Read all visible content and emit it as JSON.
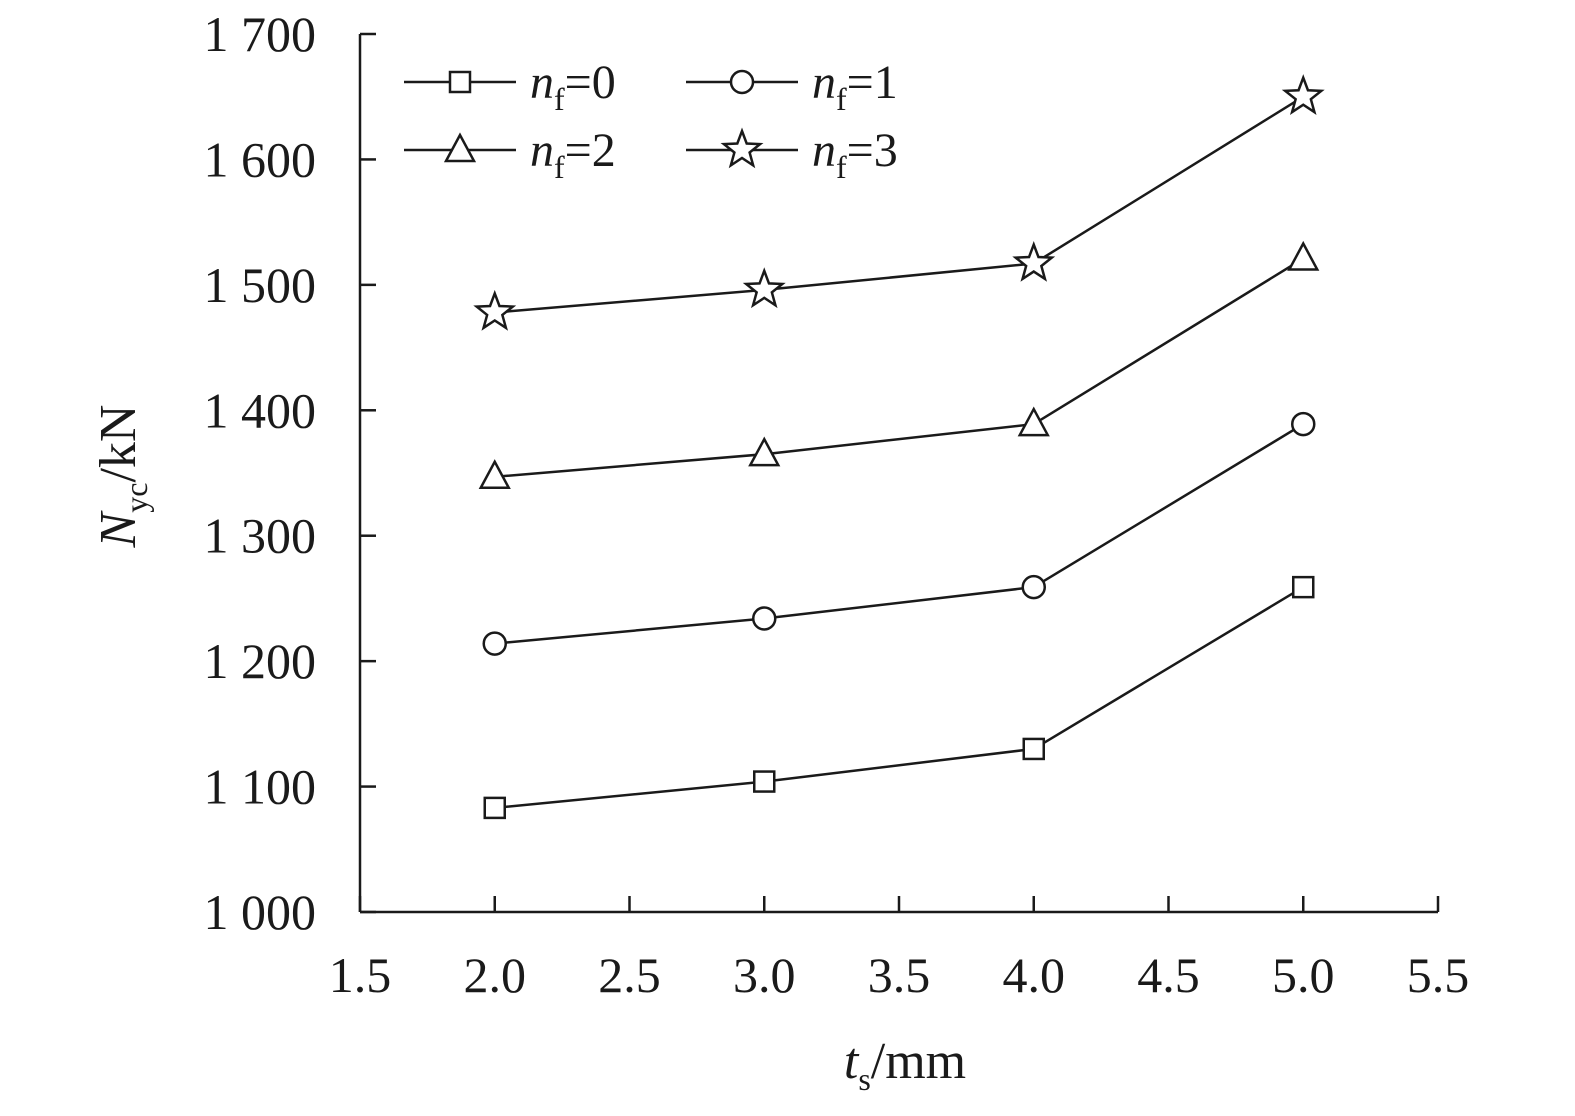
{
  "chart_data": {
    "type": "line",
    "x_label": {
      "main": "t",
      "sub": "s",
      "unit": "/mm"
    },
    "y_label": {
      "main": "N",
      "sub": "yc",
      "unit": "/kN"
    },
    "xlim": [
      1.5,
      5.5
    ],
    "ylim": [
      1000,
      1700
    ],
    "x_ticks": [
      1.5,
      2.0,
      2.5,
      3.0,
      3.5,
      4.0,
      4.5,
      5.0,
      5.5
    ],
    "x_tick_labels": [
      "1.5",
      "2.0",
      "2.5",
      "3.0",
      "3.5",
      "4.0",
      "4.5",
      "5.0",
      "5.5"
    ],
    "y_ticks": [
      1000,
      1100,
      1200,
      1300,
      1400,
      1500,
      1600,
      1700
    ],
    "y_tick_labels": [
      "1 000",
      "1 100",
      "1 200",
      "1 300",
      "1 400",
      "1 500",
      "1 600",
      "1 700"
    ],
    "grid": false,
    "legend_position": "top-left",
    "x": [
      2.0,
      3.0,
      4.0,
      5.0
    ],
    "series": [
      {
        "name": "nf=0",
        "legend_main": "n",
        "legend_sub": "f",
        "legend_value": "=0",
        "marker": "square",
        "values": [
          1083,
          1104,
          1130,
          1259
        ]
      },
      {
        "name": "nf=1",
        "legend_main": "n",
        "legend_sub": "f",
        "legend_value": "=1",
        "marker": "circle",
        "values": [
          1214,
          1234,
          1259,
          1389
        ]
      },
      {
        "name": "nf=2",
        "legend_main": "n",
        "legend_sub": "f",
        "legend_value": "=2",
        "marker": "triangle",
        "values": [
          1347,
          1365,
          1389,
          1521
        ]
      },
      {
        "name": "nf=3",
        "legend_main": "n",
        "legend_sub": "f",
        "legend_value": "=3",
        "marker": "star",
        "values": [
          1478,
          1496,
          1517,
          1650
        ]
      }
    ]
  }
}
